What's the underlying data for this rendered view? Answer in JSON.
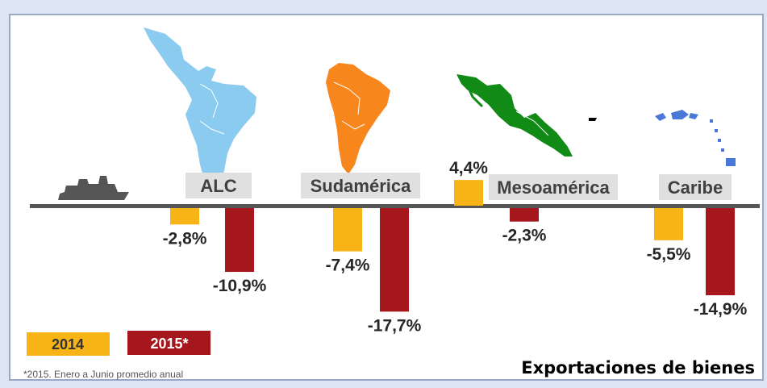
{
  "colors": {
    "series_2014": "#f8b417",
    "series_2015": "#a6161d",
    "axis": "#555555",
    "label_box": "#e0e0e0",
    "map_alc": "#8ccbf0",
    "map_sud": "#f7861c",
    "map_meso": "#118a16",
    "map_caribe": "#4a78d8",
    "ship": "#555555"
  },
  "icons": {
    "ship": "cargo-ship-icon",
    "maps": [
      "latin-america-map-icon",
      "south-america-map-icon",
      "mesoamerica-map-icon",
      "caribbean-map-icon"
    ]
  },
  "chart_data": {
    "type": "bar",
    "categories": [
      "ALC",
      "Sudamérica",
      "Mesoamérica",
      "Caribe"
    ],
    "series": [
      {
        "name": "2014",
        "values": [
          -2.8,
          -7.4,
          4.4,
          -5.5
        ]
      },
      {
        "name": "2015*",
        "values": [
          -10.9,
          -17.7,
          -2.3,
          -14.9
        ]
      }
    ],
    "value_labels": [
      [
        "-2,8%",
        "-7,4%",
        "4,4%",
        "-5,5%"
      ],
      [
        "-10,9%",
        "-17,7%",
        "-2,3%",
        "-14,9%"
      ]
    ],
    "ylim": [
      -20,
      6
    ],
    "grid": false,
    "legend_position": "bottom-left"
  },
  "legend": {
    "items": [
      {
        "label": "2014"
      },
      {
        "label": "2015*"
      }
    ]
  },
  "footnote": "*2015. Enero a Junio promedio anual",
  "caption": "Exportaciones de bienes"
}
